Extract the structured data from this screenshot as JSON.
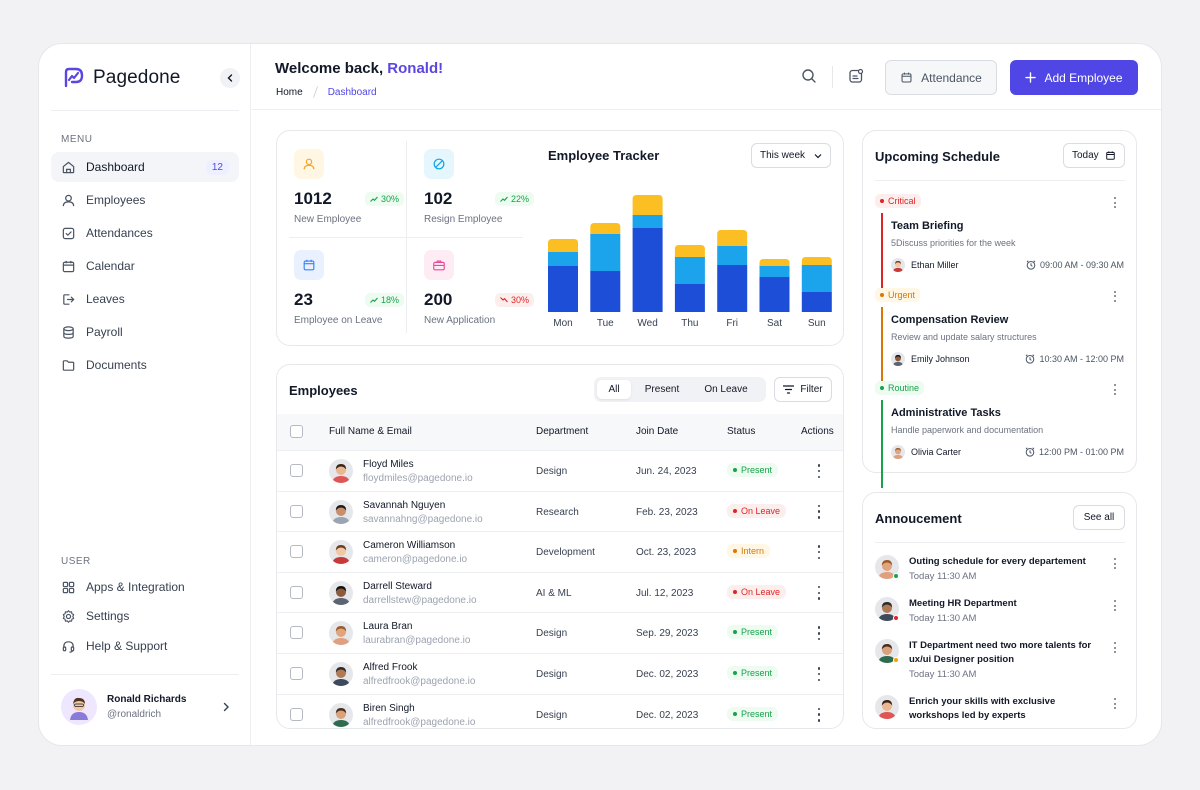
{
  "app": {
    "name": "Pagedone"
  },
  "sidebar": {
    "menu_label": "MENU",
    "items": [
      {
        "label": "Dashboard",
        "badge": "12"
      },
      {
        "label": "Employees"
      },
      {
        "label": "Attendances"
      },
      {
        "label": "Calendar"
      },
      {
        "label": "Leaves"
      },
      {
        "label": "Payroll"
      },
      {
        "label": "Documents"
      }
    ],
    "user_label": "USER",
    "user_items": [
      {
        "label": "Apps & Integration"
      },
      {
        "label": "Settings"
      },
      {
        "label": "Help & Support"
      }
    ],
    "profile": {
      "name": "Ronald Richards",
      "handle": "@ronaldrich"
    }
  },
  "header": {
    "greeting": "Welcome back, ",
    "user": "Ronald!",
    "breadcrumb": [
      "Home",
      "Dashboard"
    ],
    "attendance_label": "Attendance",
    "add_label": "Add Employee"
  },
  "stats": [
    {
      "value": "1012",
      "change": "30%",
      "direction": "up",
      "label": "New Employee",
      "icon": "user-icon",
      "color": "#f5a623"
    },
    {
      "value": "102",
      "change": "22%",
      "direction": "up",
      "label": "Resign Employee",
      "icon": "ban-icon",
      "color": "#0ea5e9"
    },
    {
      "value": "23",
      "change": "18%",
      "direction": "up",
      "label": "Employee on Leave",
      "icon": "calendar-icon",
      "color": "#3b82f6"
    },
    {
      "value": "200",
      "change": "30%",
      "direction": "down",
      "label": "New Application",
      "icon": "briefcase-icon",
      "color": "#ec4899"
    }
  ],
  "tracker": {
    "title": "Employee Tracker",
    "range": "This week",
    "colors": {
      "bottom": "#1d4ed8",
      "middle": "#1ba3eb",
      "top": "#fbbf24"
    },
    "chart_data": {
      "type": "bar",
      "stacked": true,
      "categories": [
        "Mon",
        "Tue",
        "Wed",
        "Thu",
        "Fri",
        "Sat",
        "Sun"
      ],
      "series": [
        {
          "values": [
            46,
            41,
            84,
            28,
            47,
            35,
            20
          ]
        },
        {
          "values": [
            14,
            37,
            13,
            27,
            19,
            11,
            27
          ]
        },
        {
          "values": [
            13,
            11,
            20,
            12,
            16,
            7,
            8
          ]
        }
      ]
    }
  },
  "employees": {
    "title": "Employees",
    "tabs": [
      "All",
      "Present",
      "On Leave"
    ],
    "filter_label": "Filter",
    "columns": [
      "Full Name & Email",
      "Department",
      "Join Date",
      "Status",
      "Actions"
    ],
    "rows": [
      {
        "name": "Floyd Miles",
        "email": "floydmiles@pagedone.io",
        "department": "Design",
        "join_date": "Jun. 24, 2023",
        "status": "Present"
      },
      {
        "name": "Savannah Nguyen",
        "email": "savannahng@pagedone.io",
        "department": "Research",
        "join_date": "Feb. 23, 2023",
        "status": "On Leave"
      },
      {
        "name": "Cameron Williamson",
        "email": "cameron@pagedone.io",
        "department": "Development",
        "join_date": "Oct. 23, 2023",
        "status": "Intern"
      },
      {
        "name": "Darrell Steward",
        "email": "darrellstew@pagedone.io",
        "department": "AI & ML",
        "join_date": "Jul. 12, 2023",
        "status": "On Leave"
      },
      {
        "name": "Laura Bran",
        "email": "laurabran@pagedone.io",
        "department": "Design",
        "join_date": "Sep. 29, 2023",
        "status": "Present"
      },
      {
        "name": "Alfred Frook",
        "email": "alfredfrook@pagedone.io",
        "department": "Design",
        "join_date": "Dec. 02, 2023",
        "status": "Present"
      },
      {
        "name": "Biren Singh",
        "email": "alfredfrook@pagedone.io",
        "department": "Design",
        "join_date": "Dec. 02, 2023",
        "status": "Present"
      }
    ]
  },
  "schedule": {
    "title": "Upcoming Schedule",
    "filter": "Today",
    "items": [
      {
        "tag": "Critical",
        "title": "Team Briefing",
        "description": "5Discuss priorities for the week",
        "person": "Ethan Miller",
        "time": "09:00 AM - 09:30 AM"
      },
      {
        "tag": "Urgent",
        "title": "Compensation Review",
        "description": "Review and update salary structures",
        "person": "Emily Johnson",
        "time": "10:30 AM - 12:00 PM"
      },
      {
        "tag": "Routine",
        "title": "Administrative Tasks",
        "description": "Handle paperwork and documentation",
        "person": "Olivia Carter",
        "time": "12:00 PM - 01:00 PM"
      }
    ]
  },
  "announcements": {
    "title": "Annoucement",
    "see_all": "See all",
    "items": [
      {
        "title": "Outing schedule for every departement",
        "time": "Today 11:30 AM"
      },
      {
        "title": "Meeting HR Department",
        "time": "Today 11:30 AM"
      },
      {
        "title": "IT Department need two more talents for ux/ui Designer position",
        "time": "Today 11:30 AM"
      },
      {
        "title": "Enrich your skills with exclusive workshops led by experts",
        "time": ""
      }
    ]
  }
}
